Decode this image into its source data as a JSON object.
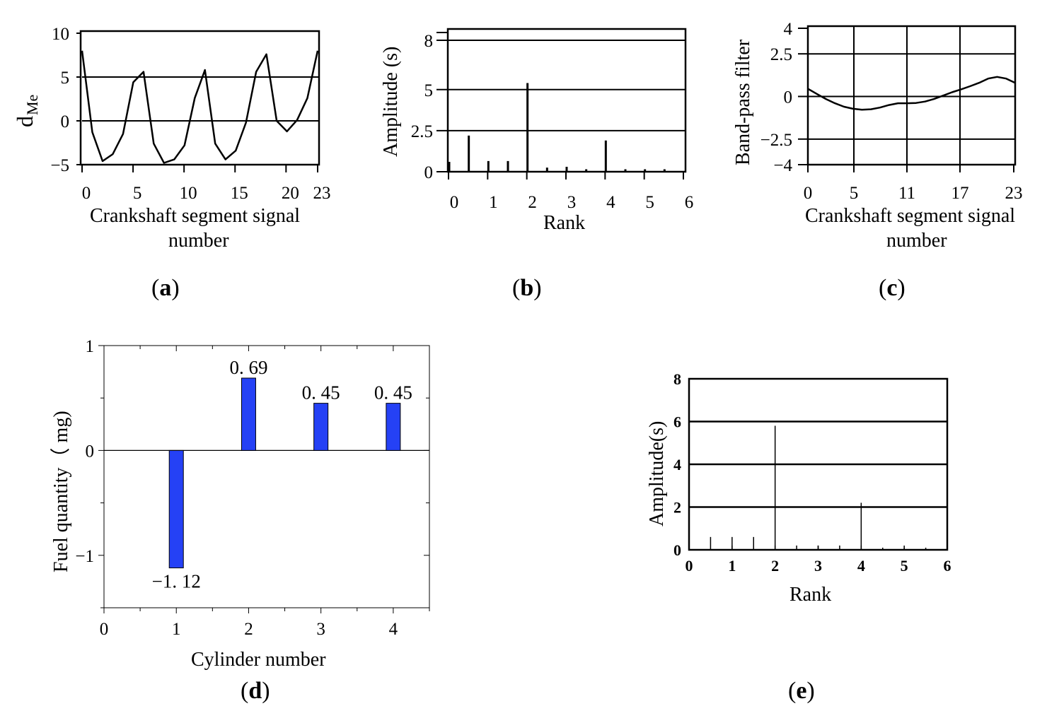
{
  "figure": {
    "panels": [
      {
        "id": "a",
        "caption_open": "(",
        "caption_letter": "a",
        "caption_close": ")"
      },
      {
        "id": "b",
        "caption_open": "(",
        "caption_letter": "b",
        "caption_close": ")"
      },
      {
        "id": "c",
        "caption_open": "(",
        "caption_letter": "c",
        "caption_close": ")"
      },
      {
        "id": "d",
        "caption_open": "(",
        "caption_letter": "d",
        "caption_close": ")"
      },
      {
        "id": "e",
        "caption_open": "(",
        "caption_letter": "e",
        "caption_close": ")"
      }
    ]
  },
  "chart_data": [
    {
      "id": "a",
      "type": "line",
      "ylabel_main": "d",
      "ylabel_sub": "Me",
      "xlabel": [
        "Crankshaft segment signal",
        "number"
      ],
      "xlim": [
        0,
        24
      ],
      "ylim": [
        -5,
        10
      ],
      "xticks": [
        0,
        5,
        10,
        15,
        20,
        23
      ],
      "yticks": [
        -5,
        0,
        5,
        10
      ],
      "ytick_labels": [
        "−5",
        "0",
        "5",
        "10"
      ],
      "hgrid": [
        0,
        5
      ],
      "x": [
        0,
        1,
        2,
        3,
        4,
        5,
        6,
        7,
        8,
        9,
        10,
        11,
        12,
        13,
        14,
        15,
        16,
        17,
        18,
        19,
        20,
        21,
        22,
        23
      ],
      "y": [
        8.0,
        -1.3,
        -4.6,
        -3.8,
        -1.5,
        4.4,
        5.6,
        -2.6,
        -4.8,
        -4.4,
        -2.8,
        2.6,
        5.8,
        -2.6,
        -4.4,
        -3.4,
        -0.2,
        5.6,
        7.6,
        0.0,
        -1.2,
        0.1,
        2.6,
        8.0
      ]
    },
    {
      "id": "b",
      "type": "bar",
      "xlabel": "Rank",
      "ylabel": "Amplitude (s)",
      "xlim": [
        0,
        6
      ],
      "ylim": [
        0,
        8.6
      ],
      "xticks": [
        0,
        1,
        2,
        3,
        4,
        5,
        6
      ],
      "yticks": [
        0,
        2.5,
        5,
        8
      ],
      "ytick_labels": [
        "0",
        "2.5",
        "5",
        "8"
      ],
      "hgrid": [
        2.5,
        5,
        8
      ],
      "x": [
        0,
        0.5,
        1,
        1.5,
        2,
        2.5,
        3,
        3.5,
        4,
        4.5,
        5,
        5.5
      ],
      "values": [
        0.6,
        2.2,
        0.65,
        0.65,
        5.4,
        0.25,
        0.3,
        0.15,
        1.9,
        0.15,
        0.15,
        0.15
      ]
    },
    {
      "id": "c",
      "type": "line",
      "ylabel": "Band-pass filter",
      "xlabel": [
        "Crankshaft segment signal",
        "number"
      ],
      "xlim": [
        0,
        23
      ],
      "ylim": [
        -4,
        4
      ],
      "xticks": [
        0,
        5,
        11,
        17,
        23
      ],
      "yticks": [
        -4,
        -2.5,
        0,
        2.5,
        4
      ],
      "ytick_labels": [
        "−4",
        "−2.5",
        "0",
        "2.5",
        "4"
      ],
      "hgrid": [
        -2.5,
        0,
        2.5
      ],
      "vgrid": [
        5,
        11,
        17
      ],
      "x": [
        0,
        1,
        2,
        3,
        4,
        5,
        6,
        7,
        8,
        9,
        10,
        11,
        12,
        13,
        14,
        15,
        16,
        17,
        18,
        19,
        20,
        21,
        22,
        23
      ],
      "y": [
        0.45,
        0.15,
        -0.15,
        -0.4,
        -0.6,
        -0.72,
        -0.78,
        -0.75,
        -0.65,
        -0.5,
        -0.4,
        -0.4,
        -0.38,
        -0.3,
        -0.15,
        0.05,
        0.25,
        0.42,
        0.6,
        0.8,
        1.05,
        1.15,
        1.05,
        0.8
      ]
    },
    {
      "id": "d",
      "type": "bar",
      "xlabel": "Cylinder number",
      "ylabel": "Fuel quantity（ mg)",
      "xlim": [
        0,
        4.5
      ],
      "ylim": [
        -1.5,
        1
      ],
      "xticks": [
        0,
        1,
        2,
        3,
        4
      ],
      "yticks": [
        -1,
        0,
        1
      ],
      "ytick_labels": [
        "−1",
        "0",
        "1"
      ],
      "categories": [
        "1",
        "2",
        "3",
        "4"
      ],
      "x": [
        1,
        2,
        3,
        4
      ],
      "values": [
        -1.12,
        0.69,
        0.45,
        0.45
      ],
      "data_labels": [
        "−1. 12",
        "0. 69",
        "0. 45",
        "0. 45"
      ],
      "bar_color": "#2541f5"
    },
    {
      "id": "e",
      "type": "bar",
      "xlabel": "Rank",
      "ylabel": "Amplitude(s)",
      "xlim": [
        0,
        6
      ],
      "ylim": [
        0,
        8
      ],
      "xticks": [
        0,
        1,
        2,
        3,
        4,
        5,
        6
      ],
      "yticks": [
        0,
        2,
        4,
        6,
        8
      ],
      "ytick_labels": [
        "0",
        "2",
        "4",
        "6",
        "8"
      ],
      "hgrid": [
        2,
        4,
        6
      ],
      "x": [
        0.5,
        1,
        1.5,
        2,
        2.5,
        3,
        3.5,
        4,
        4.5,
        5,
        5.5
      ],
      "values": [
        0.6,
        0.6,
        0.6,
        5.8,
        0.2,
        0.2,
        0.2,
        2.2,
        0.1,
        0.1,
        0.1
      ]
    }
  ]
}
